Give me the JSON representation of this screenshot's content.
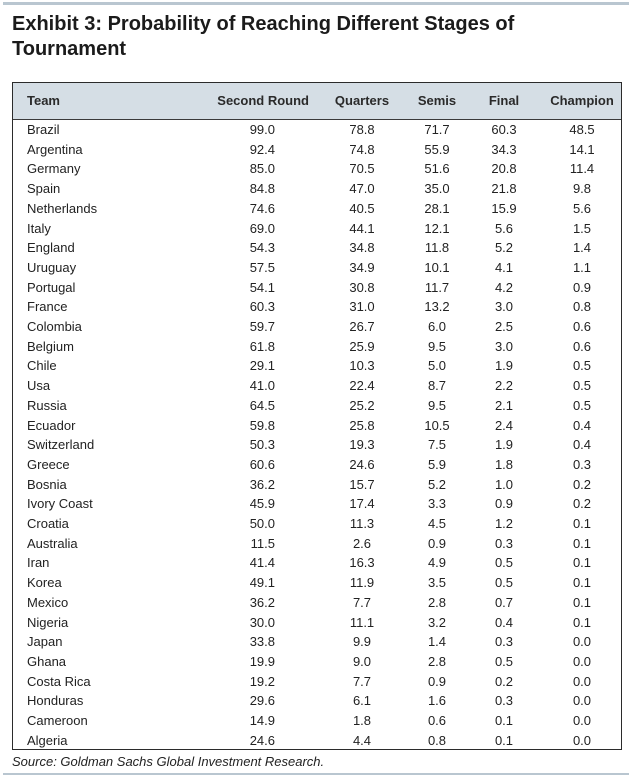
{
  "title_line1": "Exhibit 3: Probability of Reaching Different Stages of",
  "title_line2": "Tournament",
  "source": "Source: Goldman Sachs Global Investment Research.",
  "chart_data": {
    "type": "table",
    "columns": [
      "Team",
      "Second Round",
      "Quarters",
      "Semis",
      "Final",
      "Champion"
    ],
    "rows": [
      [
        "Brazil",
        "99.0",
        "78.8",
        "71.7",
        "60.3",
        "48.5"
      ],
      [
        "Argentina",
        "92.4",
        "74.8",
        "55.9",
        "34.3",
        "14.1"
      ],
      [
        "Germany",
        "85.0",
        "70.5",
        "51.6",
        "20.8",
        "11.4"
      ],
      [
        "Spain",
        "84.8",
        "47.0",
        "35.0",
        "21.8",
        "9.8"
      ],
      [
        "Netherlands",
        "74.6",
        "40.5",
        "28.1",
        "15.9",
        "5.6"
      ],
      [
        "Italy",
        "69.0",
        "44.1",
        "12.1",
        "5.6",
        "1.5"
      ],
      [
        "England",
        "54.3",
        "34.8",
        "11.8",
        "5.2",
        "1.4"
      ],
      [
        "Uruguay",
        "57.5",
        "34.9",
        "10.1",
        "4.1",
        "1.1"
      ],
      [
        "Portugal",
        "54.1",
        "30.8",
        "11.7",
        "4.2",
        "0.9"
      ],
      [
        "France",
        "60.3",
        "31.0",
        "13.2",
        "3.0",
        "0.8"
      ],
      [
        "Colombia",
        "59.7",
        "26.7",
        "6.0",
        "2.5",
        "0.6"
      ],
      [
        "Belgium",
        "61.8",
        "25.9",
        "9.5",
        "3.0",
        "0.6"
      ],
      [
        "Chile",
        "29.1",
        "10.3",
        "5.0",
        "1.9",
        "0.5"
      ],
      [
        "Usa",
        "41.0",
        "22.4",
        "8.7",
        "2.2",
        "0.5"
      ],
      [
        "Russia",
        "64.5",
        "25.2",
        "9.5",
        "2.1",
        "0.5"
      ],
      [
        "Ecuador",
        "59.8",
        "25.8",
        "10.5",
        "2.4",
        "0.4"
      ],
      [
        "Switzerland",
        "50.3",
        "19.3",
        "7.5",
        "1.9",
        "0.4"
      ],
      [
        "Greece",
        "60.6",
        "24.6",
        "5.9",
        "1.8",
        "0.3"
      ],
      [
        "Bosnia",
        "36.2",
        "15.7",
        "5.2",
        "1.0",
        "0.2"
      ],
      [
        "Ivory Coast",
        "45.9",
        "17.4",
        "3.3",
        "0.9",
        "0.2"
      ],
      [
        "Croatia",
        "50.0",
        "11.3",
        "4.5",
        "1.2",
        "0.1"
      ],
      [
        "Australia",
        "11.5",
        "2.6",
        "0.9",
        "0.3",
        "0.1"
      ],
      [
        "Iran",
        "41.4",
        "16.3",
        "4.9",
        "0.5",
        "0.1"
      ],
      [
        "Korea",
        "49.1",
        "11.9",
        "3.5",
        "0.5",
        "0.1"
      ],
      [
        "Mexico",
        "36.2",
        "7.7",
        "2.8",
        "0.7",
        "0.1"
      ],
      [
        "Nigeria",
        "30.0",
        "11.1",
        "3.2",
        "0.4",
        "0.1"
      ],
      [
        "Japan",
        "33.8",
        "9.9",
        "1.4",
        "0.3",
        "0.0"
      ],
      [
        "Ghana",
        "19.9",
        "9.0",
        "2.8",
        "0.5",
        "0.0"
      ],
      [
        "Costa Rica",
        "19.2",
        "7.7",
        "0.9",
        "0.2",
        "0.0"
      ],
      [
        "Honduras",
        "29.6",
        "6.1",
        "1.6",
        "0.3",
        "0.0"
      ],
      [
        "Cameroon",
        "14.9",
        "1.8",
        "0.6",
        "0.1",
        "0.0"
      ],
      [
        "Algeria",
        "24.6",
        "4.4",
        "0.8",
        "0.1",
        "0.0"
      ]
    ]
  }
}
